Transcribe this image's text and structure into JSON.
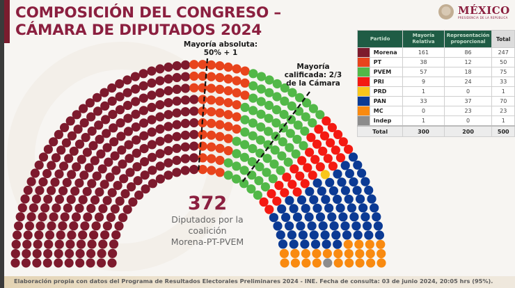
{
  "header": {
    "title_line1": "COMPOSICIÓN DEL CONGRESO –",
    "title_line2": "CÁMARA DE DIPUTADOS 2024"
  },
  "logo": {
    "title": "MÉXICO",
    "subtitle": "PRESIDENCIA DE LA REPÚBLICA",
    "icon": "national-emblem-icon"
  },
  "annotations": {
    "absolute_majority_line1": "Mayoría absoluta:",
    "absolute_majority_line2": "50% + 1",
    "qualified_majority_line1": "Mayoría",
    "qualified_majority_line2": "calificada: 2/3",
    "qualified_majority_line3": "de la Cámara"
  },
  "coalition": {
    "seats": "372",
    "caption_line1": "Diputados por la",
    "caption_line2": "coalición",
    "caption_line3": "Morena-PT-PVEM"
  },
  "table": {
    "headers": {
      "party": "Partido",
      "relative": "Mayoría Relativa",
      "proportional": "Representación proporcional",
      "total": "Total"
    },
    "rows": [
      {
        "party": "Morena",
        "color": "#7d1a2d",
        "relative": "161",
        "proportional": "86",
        "total": "247"
      },
      {
        "party": "PT",
        "color": "#e8441c",
        "relative": "38",
        "proportional": "12",
        "total": "50"
      },
      {
        "party": "PVEM",
        "color": "#52b848",
        "relative": "57",
        "proportional": "18",
        "total": "75"
      },
      {
        "party": "PRI",
        "color": "#f41a12",
        "relative": "9",
        "proportional": "24",
        "total": "33"
      },
      {
        "party": "PRD",
        "color": "#f8c61c",
        "relative": "1",
        "proportional": "0",
        "total": "1"
      },
      {
        "party": "PAN",
        "color": "#0b3a94",
        "relative": "33",
        "proportional": "37",
        "total": "70"
      },
      {
        "party": "MC",
        "color": "#f98a10",
        "relative": "0",
        "proportional": "23",
        "total": "23"
      },
      {
        "party": "Indep",
        "color": "#8c8c8c",
        "relative": "1",
        "proportional": "0",
        "total": "1"
      }
    ],
    "total_row": {
      "label": "Total",
      "relative": "300",
      "proportional": "200",
      "total": "500"
    }
  },
  "footer": {
    "source": "Elaboración propia con datos del Programa de Resultados Electorales Preliminares 2024 - INE. Fecha de consulta: 03 de junio 2024, 20:05 hrs (95%)."
  },
  "chart_data": {
    "type": "parliament-hemicycle",
    "title": "COMPOSICIÓN DEL CONGRESO – CÁMARA DE DIPUTADOS 2024",
    "total_seats": 500,
    "rows": 10,
    "series": [
      {
        "name": "Morena",
        "color": "#7d1a2d",
        "seats": 247,
        "mayoria_relativa": 161,
        "representacion_proporcional": 86
      },
      {
        "name": "PT",
        "color": "#e8441c",
        "seats": 50,
        "mayoria_relativa": 38,
        "representacion_proporcional": 12
      },
      {
        "name": "PVEM",
        "color": "#52b848",
        "seats": 75,
        "mayoria_relativa": 57,
        "representacion_proporcional": 18
      },
      {
        "name": "PRI",
        "color": "#f41a12",
        "seats": 33,
        "mayoria_relativa": 9,
        "representacion_proporcional": 24
      },
      {
        "name": "PRD",
        "color": "#f8c61c",
        "seats": 1,
        "mayoria_relativa": 1,
        "representacion_proporcional": 0
      },
      {
        "name": "PAN",
        "color": "#0b3a94",
        "seats": 70,
        "mayoria_relativa": 33,
        "representacion_proporcional": 37
      },
      {
        "name": "MC",
        "color": "#f98a10",
        "seats": 23,
        "mayoria_relativa": 0,
        "representacion_proporcional": 23
      },
      {
        "name": "Indep",
        "color": "#8c8c8c",
        "seats": 1,
        "mayoria_relativa": 1,
        "representacion_proporcional": 0
      }
    ],
    "annotations": [
      {
        "text": "Mayoría absoluta: 50% + 1",
        "threshold_seats": 251
      },
      {
        "text": "Mayoría calificada: 2/3 de la Cámara",
        "threshold_seats": 334
      }
    ],
    "highlight": {
      "value": 372,
      "label": "Diputados por la coalición Morena-PT-PVEM"
    },
    "totals": {
      "mayoria_relativa": 300,
      "representacion_proporcional": 200,
      "total": 500
    }
  }
}
